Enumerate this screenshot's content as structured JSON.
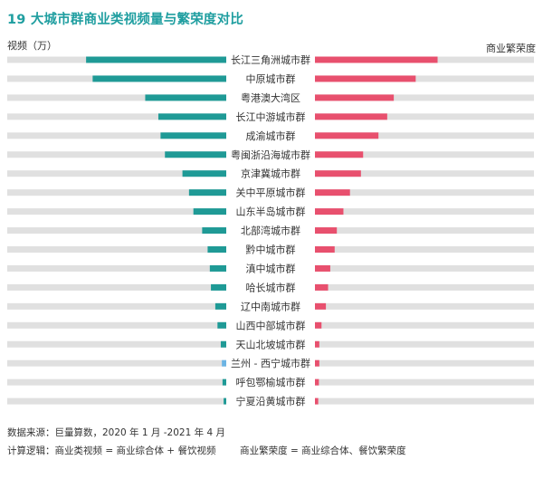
{
  "title": "19 大城市群商业类视频量与繁荣度对比",
  "footer": {
    "source": "数据来源：巨量算数，2020 年 1 月 -2021 年 4 月",
    "logic": "计算逻辑：商业类视频 = 商业综合体 + 餐饮视频        商业繁荣度 = 商业综合体、餐饮繁荣度"
  },
  "colors": {
    "title": "#1f9ea0",
    "video": "#1f9a96",
    "video_highlight": "#6cb4e4",
    "prosperity": "#e8506e",
    "track": "#e0e0e0"
  },
  "chart_data": {
    "type": "bar",
    "title": "19 大城市群商业类视频量与繁荣度对比",
    "left_axis_label": "视频（万）",
    "right_axis_label": "商业繁荣度",
    "categories": [
      "长江三角洲城市群",
      "中原城市群",
      "粤港澳大湾区",
      "长江中游城市群",
      "成渝城市群",
      "粤闽浙沿海城市群",
      "京津冀城市群",
      "关中平原城市群",
      "山东半岛城市群",
      "北部湾城市群",
      "黔中城市群",
      "滇中城市群",
      "哈长城市群",
      "辽中南城市群",
      "山西中部城市群",
      "天山北坡城市群",
      "兰州 - 西宁城市群",
      "呼包鄂榆城市群",
      "宁夏沿黄城市群"
    ],
    "series": [
      {
        "name": "视频（万）",
        "side": "left",
        "max": 100,
        "values": [
          64,
          61,
          37,
          31,
          30,
          28,
          20,
          17,
          15,
          11,
          8.5,
          7.5,
          7,
          5,
          4,
          2.5,
          2,
          1.7,
          1.2
        ]
      },
      {
        "name": "商业繁荣度",
        "side": "right",
        "max": 100,
        "values": [
          56,
          46,
          36,
          33,
          29,
          22,
          21,
          16,
          13,
          10,
          9,
          7,
          6,
          5,
          3,
          2,
          2,
          1.8,
          1.5
        ]
      }
    ],
    "highlight_index": 16
  }
}
